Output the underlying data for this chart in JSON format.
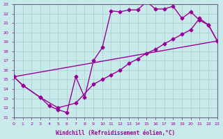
{
  "xlabel": "Windchill (Refroidissement éolien,°C)",
  "bg_color": "#c8eaea",
  "grid_color": "#aacccc",
  "line_color": "#990099",
  "xlim": [
    0,
    23
  ],
  "ylim": [
    11,
    23
  ],
  "xticks": [
    0,
    1,
    2,
    3,
    4,
    5,
    6,
    7,
    8,
    9,
    10,
    11,
    12,
    13,
    14,
    15,
    16,
    17,
    18,
    19,
    20,
    21,
    22,
    23
  ],
  "yticks": [
    11,
    12,
    13,
    14,
    15,
    16,
    17,
    18,
    19,
    20,
    21,
    22,
    23
  ],
  "curve1_x": [
    0,
    1,
    3,
    4,
    5,
    6,
    7,
    8,
    9,
    10,
    11,
    12,
    13,
    14,
    15,
    16,
    17,
    18,
    19,
    20,
    21,
    22,
    23
  ],
  "curve1_y": [
    15.3,
    14.4,
    13.1,
    12.2,
    11.8,
    11.5,
    15.3,
    13.1,
    17.0,
    18.4,
    22.3,
    22.2,
    22.4,
    22.4,
    23.3,
    22.5,
    22.5,
    22.8,
    21.5,
    22.2,
    21.3,
    20.8,
    19.1
  ],
  "curve2_x": [
    0,
    1,
    3,
    5,
    7,
    9,
    10,
    11,
    12,
    13,
    14,
    15,
    16,
    17,
    18,
    19,
    20,
    21,
    22,
    23
  ],
  "curve2_y": [
    15.3,
    14.4,
    13.1,
    12.0,
    12.5,
    14.5,
    15.0,
    15.5,
    16.0,
    16.7,
    17.2,
    17.8,
    18.2,
    18.8,
    19.3,
    19.8,
    20.3,
    21.5,
    20.8,
    19.1
  ],
  "curve3_x": [
    0,
    23
  ],
  "curve3_y": [
    15.3,
    19.1
  ],
  "marker": "D",
  "markersize": 2.5,
  "linewidth": 1.0
}
